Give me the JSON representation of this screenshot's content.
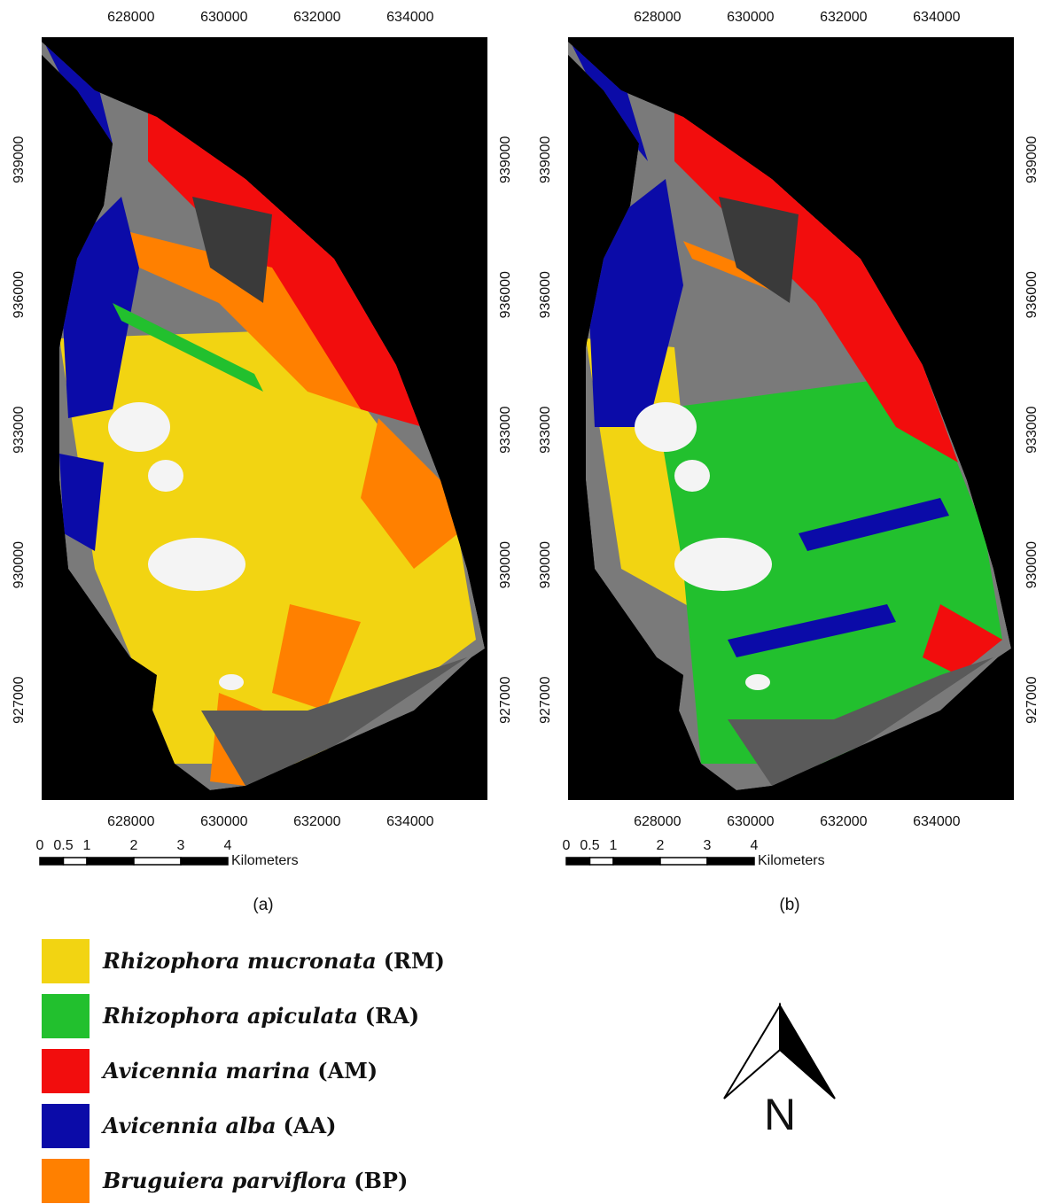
{
  "maps": [
    {
      "panel": "(a)",
      "xlim": [
        626080,
        635660
      ],
      "ylim": [
        924780,
        941720
      ],
      "xticks": [
        628000,
        630000,
        632000,
        634000
      ],
      "yticks": [
        927000,
        930000,
        933000,
        936000,
        939000
      ],
      "scale_bar": {
        "ticks": [
          0,
          0.5,
          1,
          2,
          3,
          4
        ],
        "unit": "Kilometers"
      }
    },
    {
      "panel": "(b)",
      "xlim": [
        626080,
        635660
      ],
      "ylim": [
        924780,
        941720
      ],
      "xticks": [
        628000,
        630000,
        632000,
        634000
      ],
      "yticks": [
        927000,
        930000,
        933000,
        936000,
        939000
      ],
      "scale_bar": {
        "ticks": [
          0,
          0.5,
          1,
          2,
          3,
          4
        ],
        "unit": "Kilometers"
      }
    }
  ],
  "legend": [
    {
      "species": "Rhizophora mucronata",
      "code": "(RM)",
      "color": "#f2d412"
    },
    {
      "species": "Rhizophora apiculata",
      "code": "(RA)",
      "color": "#22c02e"
    },
    {
      "species": "Avicennia marina",
      "code": "(AM)",
      "color": "#f20d0d"
    },
    {
      "species": "Avicennia alba",
      "code": "(AA)",
      "color": "#0b0ba8"
    },
    {
      "species": "Bruguiera parviflora",
      "code": "(BP)",
      "color": "#ff8000"
    }
  ],
  "north_label": "N"
}
